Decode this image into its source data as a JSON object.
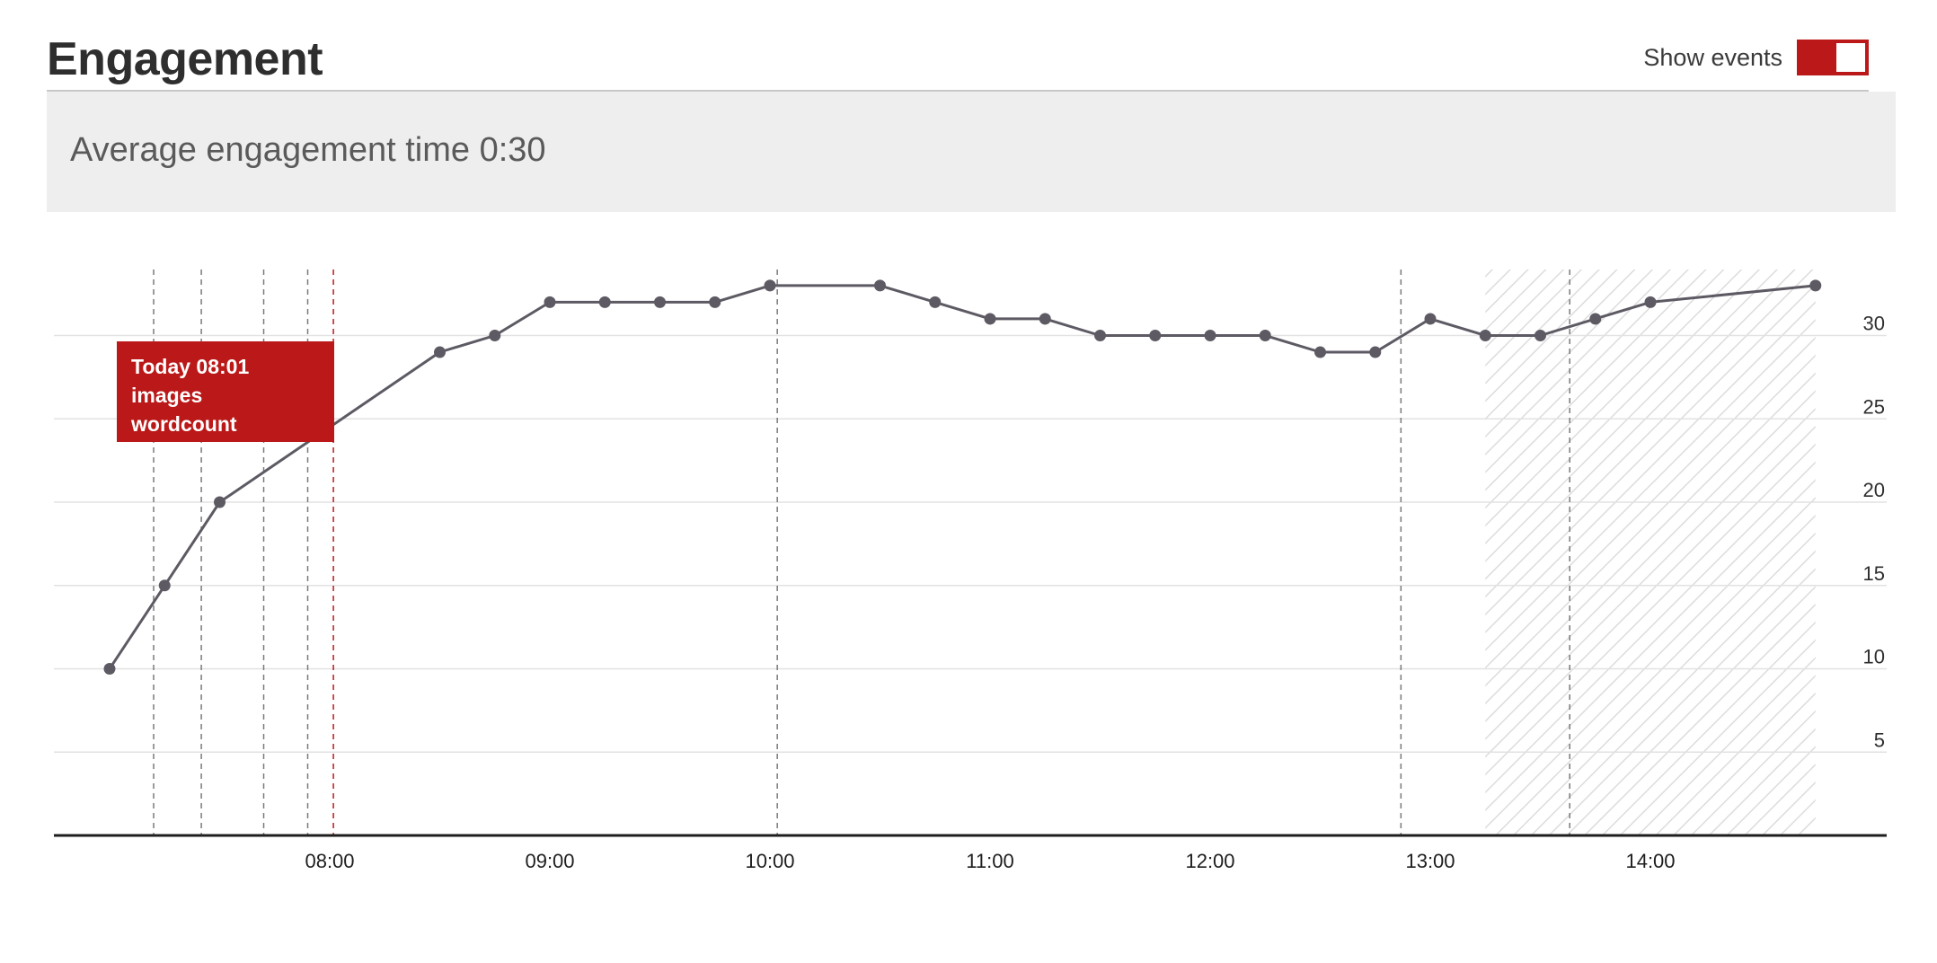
{
  "header": {
    "title": "Engagement",
    "toggle_label": "Show events",
    "toggle_on": true
  },
  "summary": {
    "text": "Average engagement time 0:30"
  },
  "tooltip": {
    "line1": "Today 08:01",
    "line2": "images",
    "line3": "wordcount"
  },
  "colors": {
    "line": "#5e5a64",
    "accent": "#bb1919",
    "grid": "#e2e2e2",
    "event": "#7a7a7a"
  },
  "chart_data": {
    "type": "line",
    "title": "",
    "xlabel": "",
    "ylabel": "",
    "x_ticks": [
      "08:00",
      "09:00",
      "10:00",
      "11:00",
      "12:00",
      "13:00",
      "14:00"
    ],
    "y_ticks": [
      5,
      10,
      15,
      20,
      25,
      30
    ],
    "ylim": [
      0,
      34
    ],
    "xlim": [
      "07:00",
      "15:05"
    ],
    "y_axis_position": "right",
    "grid": true,
    "series": [
      {
        "points": [
          {
            "x": "07:00",
            "y": 10
          },
          {
            "x": "07:15",
            "y": 15
          },
          {
            "x": "07:30",
            "y": 20
          },
          {
            "x": "08:30",
            "y": 29
          },
          {
            "x": "08:45",
            "y": 30
          },
          {
            "x": "09:00",
            "y": 32
          },
          {
            "x": "09:15",
            "y": 32
          },
          {
            "x": "09:30",
            "y": 32
          },
          {
            "x": "09:45",
            "y": 32
          },
          {
            "x": "10:00",
            "y": 33
          },
          {
            "x": "10:30",
            "y": 33
          },
          {
            "x": "10:45",
            "y": 32
          },
          {
            "x": "11:00",
            "y": 31
          },
          {
            "x": "11:15",
            "y": 31
          },
          {
            "x": "11:30",
            "y": 30
          },
          {
            "x": "11:45",
            "y": 30
          },
          {
            "x": "12:00",
            "y": 30
          },
          {
            "x": "12:15",
            "y": 30
          },
          {
            "x": "12:30",
            "y": 29
          },
          {
            "x": "12:45",
            "y": 29
          },
          {
            "x": "13:00",
            "y": 31
          },
          {
            "x": "13:15",
            "y": 30
          },
          {
            "x": "13:30",
            "y": 30
          },
          {
            "x": "13:45",
            "y": 31
          },
          {
            "x": "14:00",
            "y": 32
          },
          {
            "x": "14:45",
            "y": 33
          }
        ]
      }
    ],
    "events": [
      {
        "x": "07:12"
      },
      {
        "x": "07:25"
      },
      {
        "x": "07:42"
      },
      {
        "x": "07:54"
      },
      {
        "x": "08:01",
        "highlight": true
      },
      {
        "x": "10:02"
      },
      {
        "x": "12:52"
      },
      {
        "x": "13:38"
      }
    ],
    "hatched_range": [
      "13:15",
      "14:45"
    ]
  }
}
